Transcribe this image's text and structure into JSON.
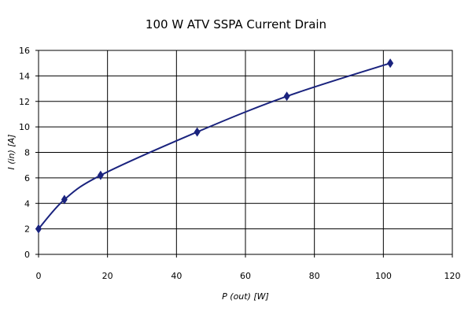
{
  "chart_data": {
    "type": "scatter",
    "title": "100 W ATV SSPA Current Drain",
    "xlabel": "P (out) [W]",
    "ylabel": "I (in) [A]",
    "xlim": [
      0,
      120
    ],
    "ylim": [
      0,
      16
    ],
    "x_ticks": [
      "0",
      "20",
      "40",
      "60",
      "80",
      "100",
      "120"
    ],
    "y_ticks": [
      "0",
      "2",
      "4",
      "6",
      "8",
      "10",
      "12",
      "14",
      "16"
    ],
    "grid": true,
    "legend": "none",
    "line_style": "smoothed line with diamond markers",
    "series": [
      {
        "color": "#1a237e",
        "points": [
          {
            "x": 0,
            "y": 2.0
          },
          {
            "x": 7.5,
            "y": 4.3
          },
          {
            "x": 18,
            "y": 6.2
          },
          {
            "x": 46,
            "y": 9.6
          },
          {
            "x": 72,
            "y": 12.4
          },
          {
            "x": 102,
            "y": 15.0
          }
        ]
      }
    ]
  }
}
